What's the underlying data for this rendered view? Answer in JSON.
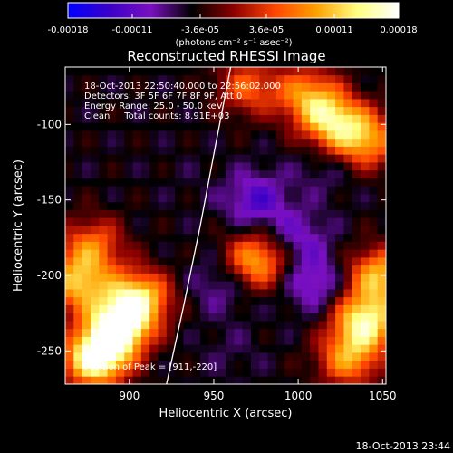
{
  "chart_data": {
    "type": "heatmap",
    "title": "Reconstructed RHESSI Image",
    "xlabel": "Heliocentric X (arcsec)",
    "ylabel": "Heliocentric Y (arcsec)",
    "xlim": [
      862,
      1052
    ],
    "ylim": [
      -272,
      -62
    ],
    "x_ticks": [
      "900",
      "950",
      "1000",
      "1050"
    ],
    "y_ticks": [
      "-100",
      "-150",
      "-200",
      "-250"
    ],
    "colorbar": {
      "ticks": [
        "-0.00018",
        "-0.00011",
        "-3.6e-05",
        "3.6e-05",
        "0.00011",
        "0.00018"
      ],
      "unit_label": "(photons cm⁻² s⁻¹ asec⁻²)",
      "range": [
        -0.00018,
        0.00018
      ],
      "colors": [
        "#0000ff",
        "#3a00c8",
        "#7a10c0",
        "#000000",
        "#8b0000",
        "#ff4500",
        "#ff9f00",
        "#ffff80",
        "#ffffff"
      ]
    },
    "limb_curve": {
      "x": [
        922,
        932,
        942,
        951,
        960
      ],
      "y": [
        -272,
        -221,
        -167,
        -114,
        -62
      ]
    },
    "hotspots": [
      {
        "x": 880,
        "y": -255,
        "value": 0.00017
      },
      {
        "x": 893,
        "y": -235,
        "value": 0.00018
      },
      {
        "x": 905,
        "y": -215,
        "value": 0.00013
      },
      {
        "x": 870,
        "y": -205,
        "value": 0.0001
      },
      {
        "x": 878,
        "y": -180,
        "value": 6e-05
      },
      {
        "x": 1020,
        "y": -97,
        "value": 0.00011
      },
      {
        "x": 1040,
        "y": -110,
        "value": 9e-05
      },
      {
        "x": 1005,
        "y": -80,
        "value": 7e-05
      },
      {
        "x": 975,
        "y": -190,
        "value": 0.0001
      },
      {
        "x": 1040,
        "y": -230,
        "value": 0.00014
      },
      {
        "x": 1048,
        "y": -200,
        "value": 0.0001
      },
      {
        "x": 1030,
        "y": -255,
        "value": 8e-05
      },
      {
        "x": 970,
        "y": -75,
        "value": 5e-05
      }
    ],
    "coldspots": [
      {
        "x": 975,
        "y": -150,
        "value": -0.00012
      },
      {
        "x": 1000,
        "y": -175,
        "value": -0.0001
      },
      {
        "x": 955,
        "y": -205,
        "value": -9e-05
      },
      {
        "x": 1010,
        "y": -205,
        "value": -0.00011
      },
      {
        "x": 935,
        "y": -135,
        "value": -5e-05
      },
      {
        "x": 1015,
        "y": -130,
        "value": -7e-05
      },
      {
        "x": 960,
        "y": -250,
        "value": -6e-05
      }
    ]
  },
  "annotations": {
    "time_range": "18-Oct-2013 22:50:40.000 to 22:56:02.000",
    "detectors": "Detectors: 3F 5F 6F 7F 8F 9F, Att 0",
    "energy": "Energy Range: 25.0 - 50.0 keV",
    "clean": "Clean     Total counts: 8.91E+03",
    "peak": "Position of Peak = [911,-220]"
  },
  "footer_timestamp": "18-Oct-2013 23:44"
}
